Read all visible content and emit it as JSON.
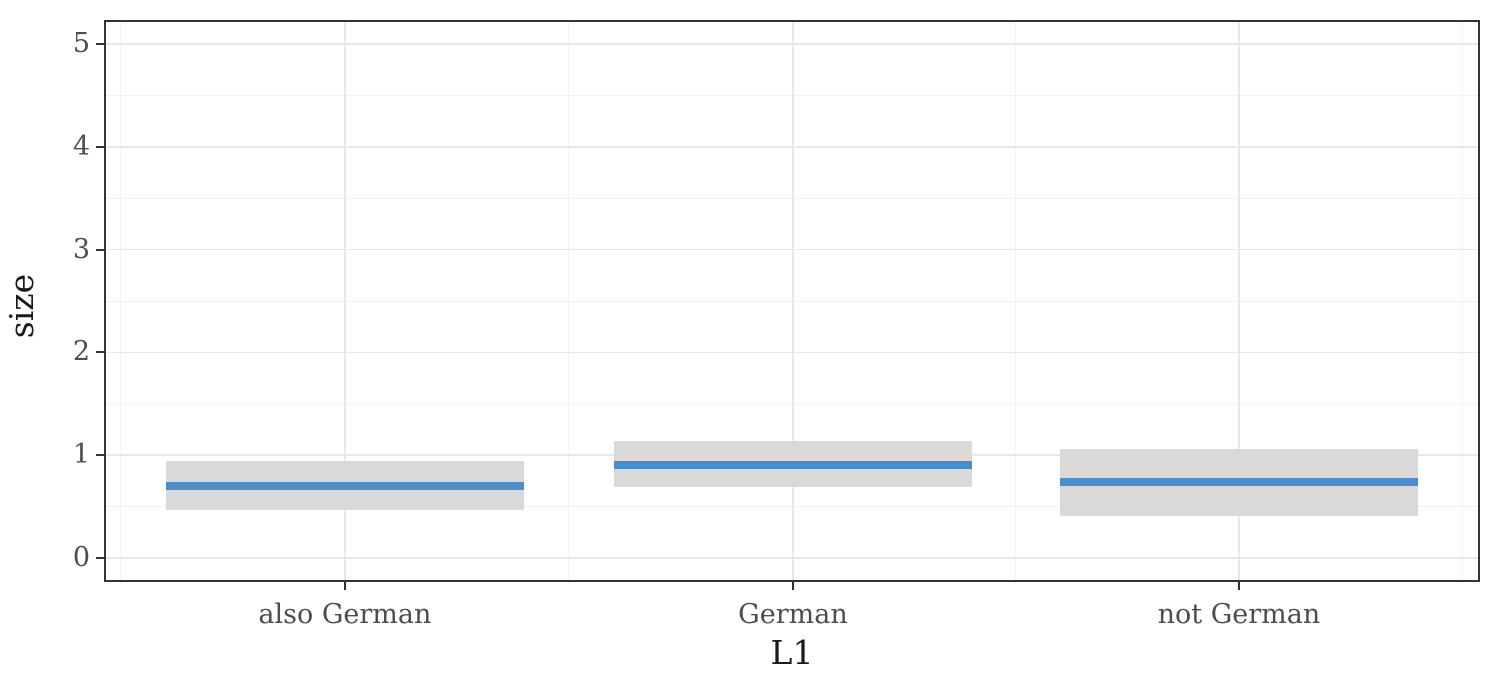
{
  "figure": {
    "background_color": "#ffffff",
    "panel_border_color": "#333333",
    "tick_mark_color": "#333333",
    "tick_label_color": "#4d4d4d",
    "axis_title_color": "#1a1a1a"
  },
  "chart_data": {
    "type": "area",
    "subtype": "categorical-estimate-with-ci-ribbon",
    "title": "",
    "xlabel": "L1",
    "ylabel": "size",
    "categories": [
      "also German",
      "German",
      "not German"
    ],
    "series": [
      {
        "name": "estimate",
        "values": [
          0.7,
          0.9,
          0.74
        ]
      },
      {
        "name": "ci_lower",
        "values": [
          0.47,
          0.69,
          0.41
        ]
      },
      {
        "name": "ci_upper",
        "values": [
          0.94,
          1.14,
          1.06
        ]
      }
    ],
    "yticks": [
      0,
      1,
      2,
      3,
      4,
      5
    ],
    "ytick_labels": [
      "0",
      "1",
      "2",
      "3",
      "4",
      "5"
    ],
    "ylim": [
      -0.225,
      5.225
    ],
    "grid": {
      "major": true,
      "minor": true
    },
    "legend": "none",
    "colors": {
      "estimate_line": "#4a8dc8",
      "ci_band": "#d9d9d9",
      "grid_major": "#e8e8e8",
      "grid_minor": "#f2f2f2"
    }
  }
}
